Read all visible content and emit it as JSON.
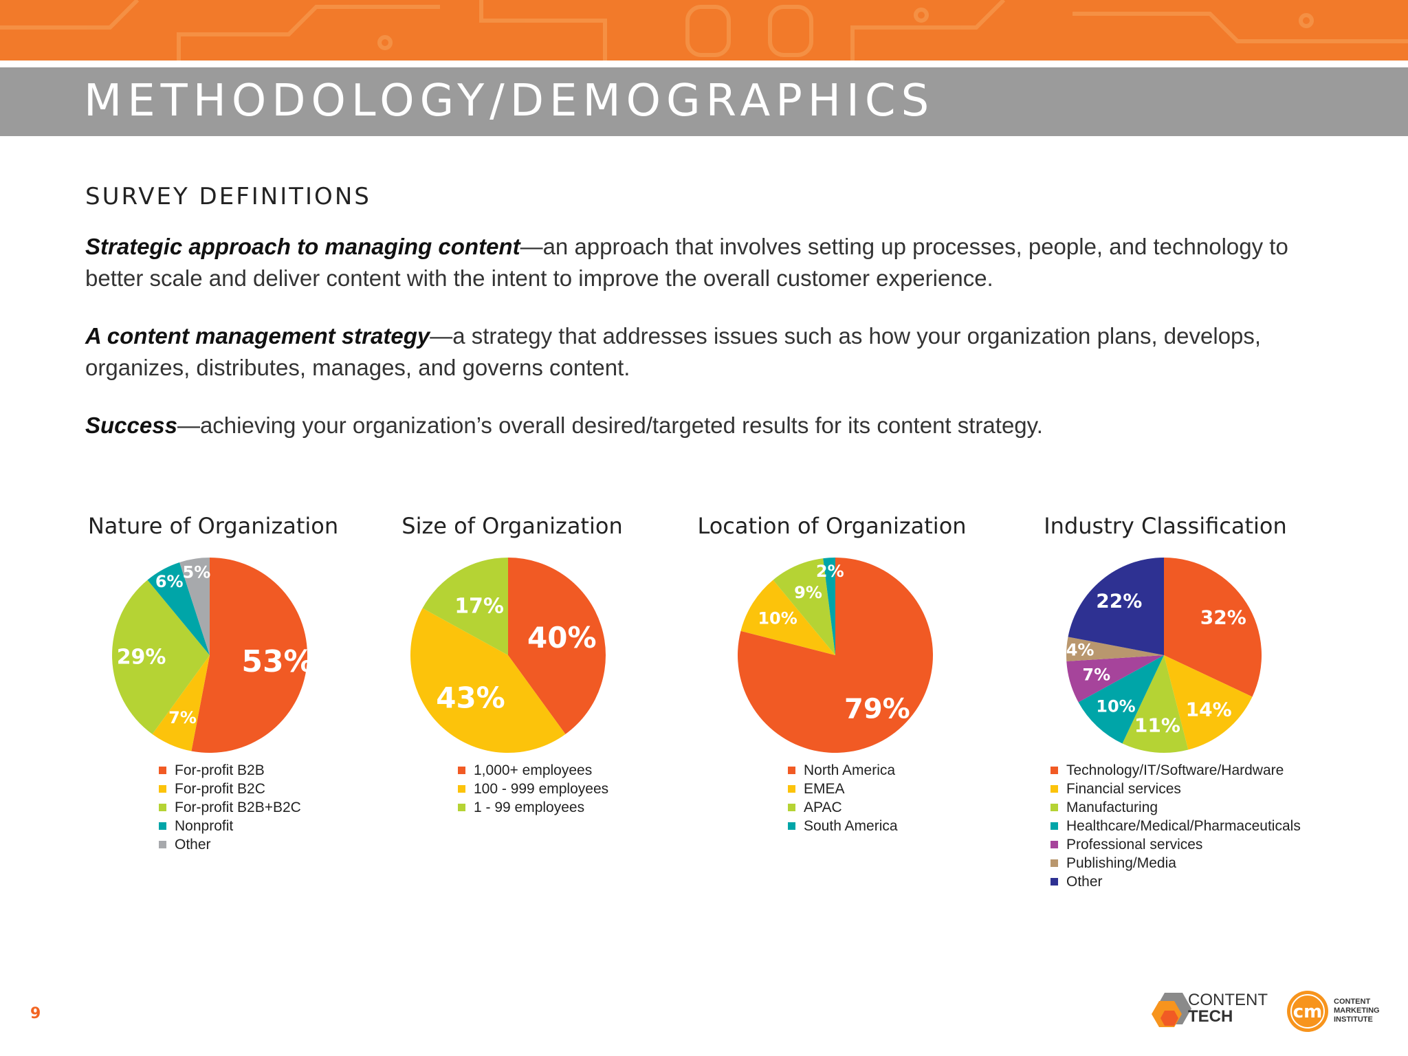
{
  "header": {
    "title": "METHODOLOGY/DEMOGRAPHICS"
  },
  "section": {
    "heading": "SURVEY DEFINITIONS"
  },
  "definitions": [
    {
      "term": "Strategic approach to managing content",
      "text": "—an approach that involves setting up processes, people, and technology to better scale and deliver content with the intent to improve the overall customer experience."
    },
    {
      "term": "A content management strategy",
      "text": "—a strategy that addresses issues such as how your organization plans, develops, organizes, distributes, manages, and governs content."
    },
    {
      "term": "Success",
      "text": "—achieving your organization’s overall desired/targeted results for its content strategy."
    }
  ],
  "chart_data": [
    {
      "type": "pie",
      "title": "Nature of Organization",
      "labels": [
        "For-profit B2B",
        "For-profit B2C",
        "For-profit B2B+B2C",
        "Nonprofit",
        "Other"
      ],
      "values": [
        53,
        7,
        29,
        6,
        5
      ],
      "colors": [
        "#f15a24",
        "#fcc30b",
        "#b5d334",
        "#00a5a8",
        "#a7a9ac"
      ]
    },
    {
      "type": "pie",
      "title": "Size of Organization",
      "labels": [
        "1,000+ employees",
        "100 - 999 employees",
        "1 - 99 employees"
      ],
      "values": [
        40,
        43,
        17
      ],
      "colors": [
        "#f15a24",
        "#fcc30b",
        "#b5d334"
      ]
    },
    {
      "type": "pie",
      "title": "Location of Organization",
      "labels": [
        "North America",
        "EMEA",
        "APAC",
        "South America"
      ],
      "values": [
        79,
        10,
        9,
        2
      ],
      "colors": [
        "#f15a24",
        "#fcc30b",
        "#b5d334",
        "#00a5a8"
      ]
    },
    {
      "type": "pie",
      "title": "Industry Classification",
      "labels": [
        "Technology/IT/Software/Hardware",
        "Financial services",
        "Manufacturing",
        "Healthcare/Medical/Pharmaceuticals",
        "Professional services",
        "Publishing/Media",
        "Other"
      ],
      "values": [
        32,
        14,
        11,
        10,
        7,
        4,
        22
      ],
      "colors": [
        "#f15a24",
        "#fcc30b",
        "#b5d334",
        "#00a5a8",
        "#a6449b",
        "#b9976e",
        "#2e3192"
      ]
    }
  ],
  "footer": {
    "page_number": "9",
    "logo_content_tech": [
      "CONTENT",
      "TECH"
    ],
    "logo_cmi": [
      "CONTENT",
      "MARKETING",
      "INSTITUTE"
    ],
    "logo_cmi_mark": "cm"
  }
}
